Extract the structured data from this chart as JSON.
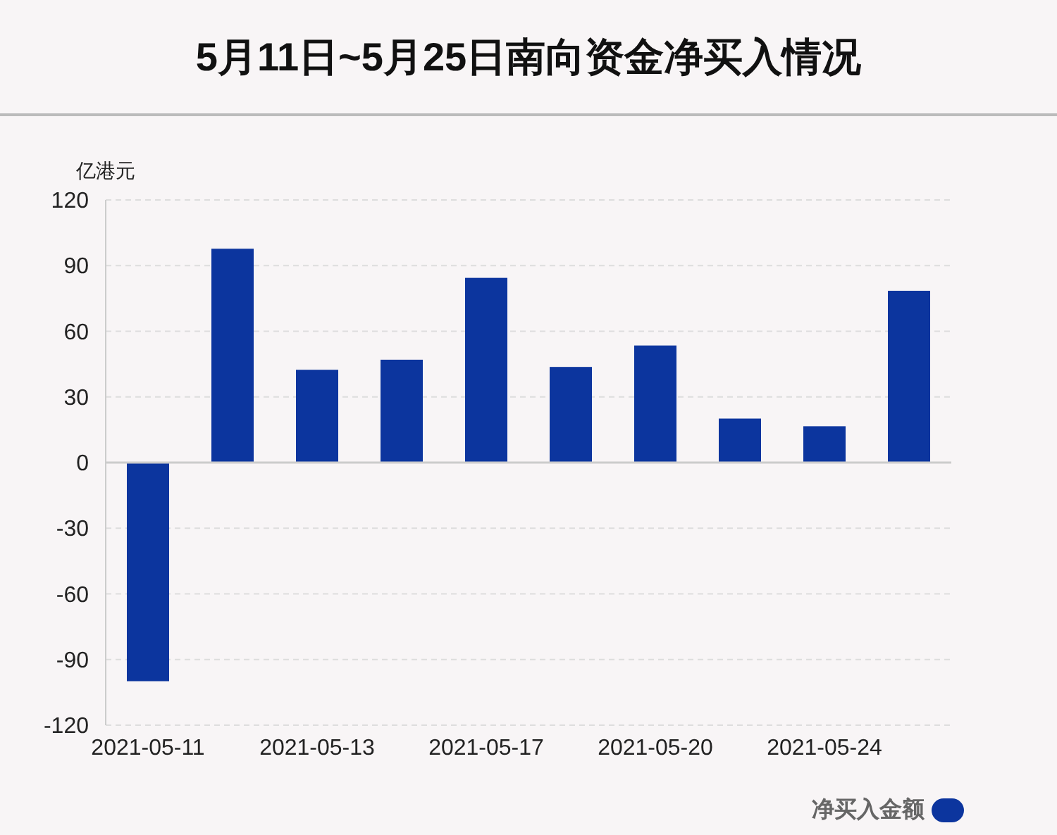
{
  "chart_data": {
    "type": "bar",
    "title": "5月11日~5月25日南向资金净买入情况",
    "ylabel": "亿港元",
    "categories": [
      "2021-05-11",
      null,
      "2021-05-13",
      null,
      "2021-05-17",
      null,
      "2021-05-20",
      null,
      "2021-05-24",
      null
    ],
    "series": [
      {
        "name": "净买入金额",
        "color": "#0c359e",
        "values": [
          -99.9,
          97.7,
          42.4,
          47.0,
          84.4,
          43.7,
          53.5,
          20.1,
          16.6,
          78.5
        ]
      }
    ],
    "ylim": [
      -120,
      120
    ],
    "yticks": [
      -120,
      -90,
      -60,
      -30,
      0,
      30,
      60,
      90,
      120
    ],
    "grid": "y",
    "legend": "bottom right"
  }
}
